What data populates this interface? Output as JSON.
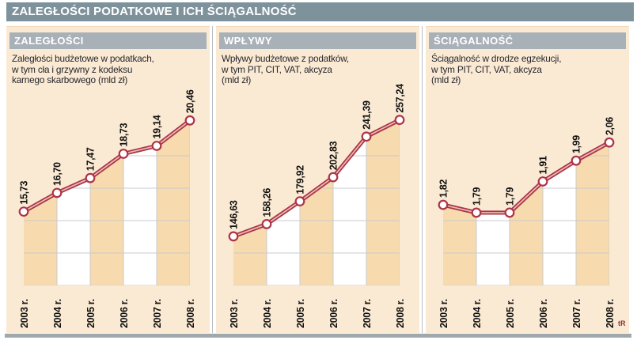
{
  "page": {
    "title": "ZALEGŁOŚCI PODATKOWE I ICH ŚCIĄGALNOŚĆ",
    "signature": "tR"
  },
  "colors": {
    "title_bar": "#7e929c",
    "panel_header_bar": "#a8b1b7",
    "panel_background": "#fbead3",
    "stripe_tan": "#f7dbae",
    "stripe_white": "#ffffff",
    "gridline": "#c9cbcc",
    "line_red": "#ac3448",
    "line_inner": "#e9bdb4",
    "marker_fill": "#ffffff",
    "label_text": "#111111",
    "bottom_strip": "#9fa8ac"
  },
  "panels": [
    {
      "header": "ZALEGŁOŚCI",
      "desc": [
        "Zaległości budżetowe w podatkach,",
        "w tym cła i grzywny z kodeksu",
        "karnego skarbowego (mld zł)"
      ]
    },
    {
      "header": "WPŁYWY",
      "desc": [
        "Wpływy budżetowe z podatków,",
        "w tym PIT, CIT, VAT, akcyza",
        "(mld zł)"
      ]
    },
    {
      "header": "ŚCIĄGALNOŚĆ",
      "desc": [
        "Ściągalność w drodze egzekucji,",
        "w tym PIT, CIT, VAT, akcyza",
        "(mld zł)"
      ]
    }
  ],
  "chart_data": [
    {
      "type": "line",
      "title": "ZALEGŁOŚCI",
      "subtitle": "Zaległości budżetowe w podatkach, w tym cła i grzywny z kodeksu karnego skarbowego (mld zł)",
      "unit": "mld zł",
      "categories": [
        "2003 r.",
        "2004 r.",
        "2005 r.",
        "2006 r.",
        "2007 r.",
        "2008 r."
      ],
      "values": [
        15.73,
        16.7,
        17.47,
        18.73,
        19.14,
        20.46
      ],
      "labels": [
        "15,73",
        "16,70",
        "17,47",
        "18,73",
        "19,14",
        "20,46"
      ],
      "ylim": [
        11.9,
        20.8
      ],
      "grid": true,
      "legend": "none"
    },
    {
      "type": "line",
      "title": "WPŁYWY",
      "subtitle": "Wpływy budżetowe z podatków, w tym PIT, CIT, VAT, akcyza (mld zł)",
      "unit": "mld zł",
      "categories": [
        "2003 r.",
        "2004 r.",
        "2005 r.",
        "2006 r.",
        "2007 r.",
        "2008 r."
      ],
      "values": [
        146.63,
        158.26,
        179.92,
        202.83,
        241.39,
        257.24
      ],
      "labels": [
        "146,63",
        "158,26",
        "179,92",
        "202,83",
        "241,39",
        "257,24"
      ],
      "ylim": [
        100,
        263
      ],
      "grid": true,
      "legend": "none"
    },
    {
      "type": "line",
      "title": "ŚCIĄGALNOŚĆ",
      "subtitle": "Ściągalność w drodze egzekucji, w tym PIT, CIT, VAT, akcyza (mld zł)",
      "unit": "mld zł",
      "categories": [
        "2003 r.",
        "2004 r.",
        "2005 r.",
        "2006 r.",
        "2007 r.",
        "2008 r."
      ],
      "values": [
        1.82,
        1.79,
        1.79,
        1.91,
        1.99,
        2.06
      ],
      "labels": [
        "1,82",
        "1,79",
        "1,79",
        "1,91",
        "1,99",
        "2,06"
      ],
      "ylim": [
        1.51,
        2.17
      ],
      "grid": true,
      "legend": "none"
    }
  ]
}
